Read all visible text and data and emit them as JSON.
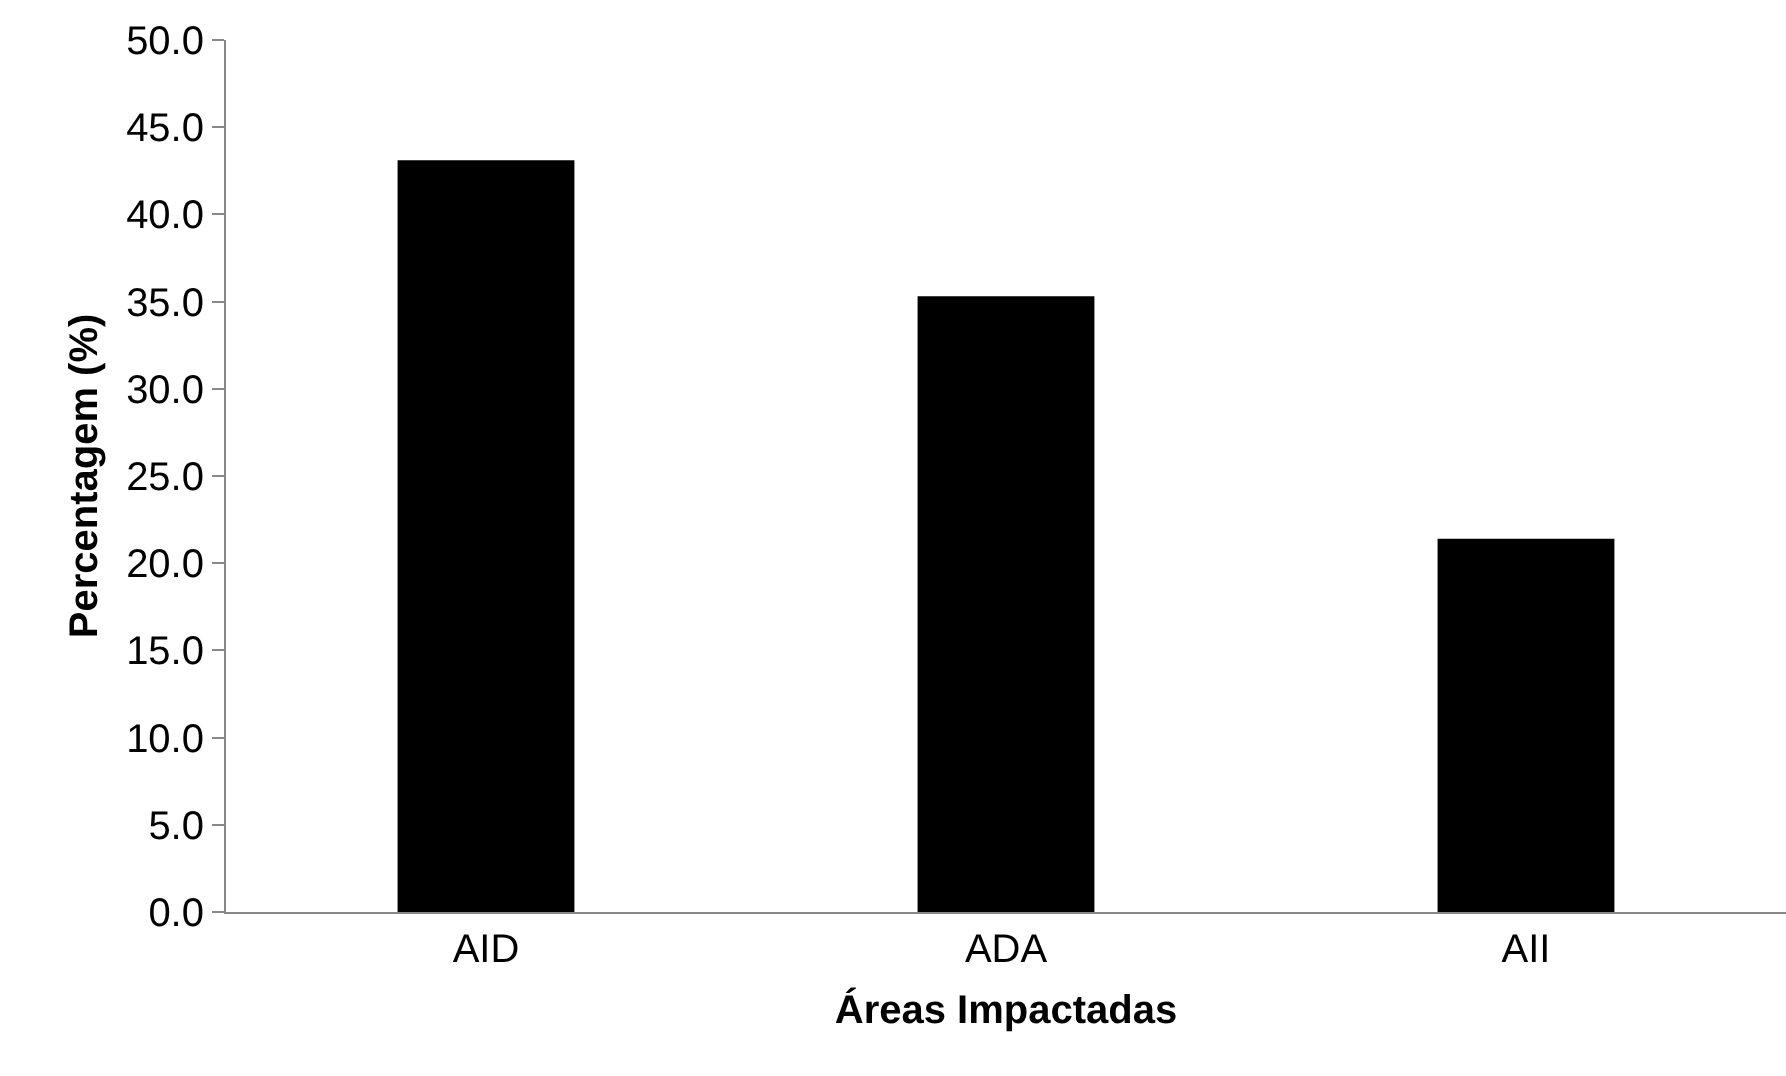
{
  "chart_data": {
    "type": "bar",
    "xlabel": "Áreas Impactadas",
    "ylabel": "Percentagem (%)",
    "categories": [
      "AID",
      "ADA",
      "AII"
    ],
    "values": [
      43.1,
      35.3,
      21.4
    ],
    "color": "#000000",
    "ylim": [
      0,
      50
    ],
    "yticks": [
      {
        "value": 0,
        "label": "0.0"
      },
      {
        "value": 5,
        "label": "5.0"
      },
      {
        "value": 10,
        "label": "10.0"
      },
      {
        "value": 15,
        "label": "15.0"
      },
      {
        "value": 20,
        "label": "20.0"
      },
      {
        "value": 25,
        "label": "25.0"
      },
      {
        "value": 30,
        "label": "30.0"
      },
      {
        "value": 35,
        "label": "35.0"
      },
      {
        "value": 40,
        "label": "40.0"
      },
      {
        "value": 45,
        "label": "45.0"
      },
      {
        "value": 50,
        "label": "50.0"
      }
    ],
    "grid": false
  }
}
